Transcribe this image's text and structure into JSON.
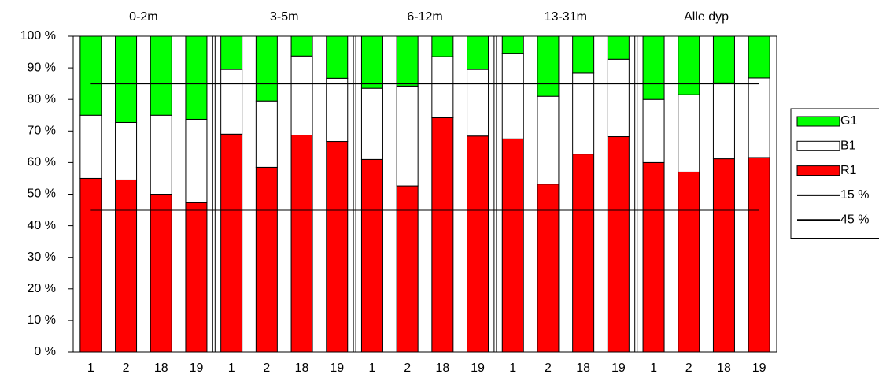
{
  "chart_data": {
    "type": "bar",
    "stacked": true,
    "groups": [
      "0-2m",
      "3-5m",
      "6-12m",
      "13-31m",
      "Alle dyp"
    ],
    "categories": [
      "1",
      "2",
      "18",
      "19",
      "1",
      "2",
      "18",
      "19",
      "1",
      "2",
      "18",
      "19",
      "1",
      "2",
      "18",
      "19",
      "1",
      "2",
      "18",
      "19"
    ],
    "series": [
      {
        "name": "R1",
        "color": "#ff0000",
        "values": [
          55,
          54.5,
          50,
          47.3,
          69,
          58.5,
          68.7,
          66.7,
          61,
          52.6,
          74.2,
          68.4,
          67.5,
          53.2,
          62.7,
          68.2,
          60,
          57,
          61.2,
          61.6
        ]
      },
      {
        "name": "B1",
        "color": "#ffffff",
        "values": [
          20,
          18.2,
          25,
          26.4,
          20.5,
          21,
          25,
          20,
          22.5,
          31.6,
          19.3,
          21.1,
          27.1,
          27.8,
          25.6,
          24.5,
          20,
          24.5,
          24,
          25.2
        ]
      },
      {
        "name": "G1",
        "color": "#00ff00",
        "values": [
          25,
          27.3,
          25,
          26.3,
          10.5,
          20.5,
          6.3,
          13.3,
          16.5,
          15.8,
          6.5,
          10.5,
          5.4,
          19,
          11.7,
          7.3,
          20,
          18.5,
          14.8,
          13.2
        ]
      },
      {
        "name": "15 %",
        "type": "line",
        "color": "#000000",
        "values": [
          85,
          85,
          85,
          85,
          85,
          85,
          85,
          85,
          85,
          85,
          85,
          85,
          85,
          85,
          85,
          85,
          85,
          85,
          85,
          85
        ]
      },
      {
        "name": "45 %",
        "type": "line",
        "color": "#000000",
        "values": [
          45,
          45,
          45,
          45,
          45,
          45,
          45,
          45,
          45,
          45,
          45,
          45,
          45,
          45,
          45,
          45,
          45,
          45,
          45,
          45
        ]
      }
    ],
    "ylim": [
      0,
      100
    ],
    "yticks": [
      {
        "value": 0,
        "label": "0 %"
      },
      {
        "value": 10,
        "label": "10 %"
      },
      {
        "value": 20,
        "label": "20 %"
      },
      {
        "value": 30,
        "label": "30 %"
      },
      {
        "value": 40,
        "label": "40 %"
      },
      {
        "value": 50,
        "label": "50 %"
      },
      {
        "value": 60,
        "label": "60 %"
      },
      {
        "value": 70,
        "label": "70 %"
      },
      {
        "value": 80,
        "label": "80 %"
      },
      {
        "value": 90,
        "label": "90 %"
      },
      {
        "value": 100,
        "label": "100 %"
      }
    ],
    "legend": "right"
  }
}
